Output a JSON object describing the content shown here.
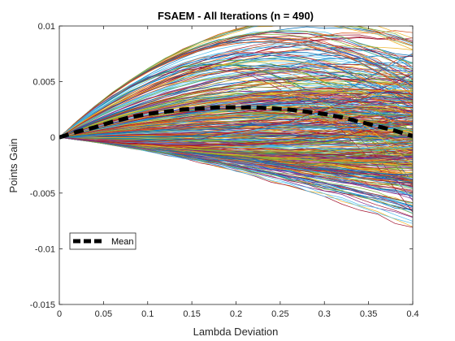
{
  "chart_data": {
    "type": "line",
    "title": "FSAEM - All Iterations (n = 490)",
    "xlabel": "Lambda Deviation",
    "ylabel": "Points Gain",
    "xlim": [
      0,
      0.4
    ],
    "ylim": [
      -0.015,
      0.01
    ],
    "xticks": [
      0,
      0.05,
      0.1,
      0.15,
      0.2,
      0.25,
      0.3,
      0.35,
      0.4
    ],
    "xtick_labels": [
      "0",
      "0.05",
      "0.1",
      "0.15",
      "0.2",
      "0.25",
      "0.3",
      "0.35",
      "0.4"
    ],
    "yticks": [
      0.01,
      0.005,
      0,
      -0.005,
      -0.01,
      -0.015
    ],
    "ytick_labels": [
      "0.01",
      "0.005",
      "0",
      "-0.005",
      "-0.01",
      "-0.015"
    ],
    "grid": false,
    "legend": {
      "position": "lower-left",
      "entries": [
        "Mean"
      ]
    },
    "iteration_count": 490,
    "iteration_colors": [
      "#0072BD",
      "#D95319",
      "#EDB120",
      "#7E2F8E",
      "#77AC30",
      "#4DBEEE",
      "#A2142F"
    ],
    "x": [
      0,
      0.02,
      0.04,
      0.06,
      0.08,
      0.1,
      0.12,
      0.14,
      0.16,
      0.18,
      0.2,
      0.22,
      0.24,
      0.26,
      0.28,
      0.3,
      0.32,
      0.34,
      0.36,
      0.38,
      0.4
    ],
    "series": [
      {
        "name": "Mean",
        "color": "#000000",
        "style": "dashed",
        "values": [
          0,
          0.0005,
          0.0009,
          0.0014,
          0.0018,
          0.0021,
          0.0023,
          0.0025,
          0.0026,
          0.0027,
          0.0027,
          0.0027,
          0.0026,
          0.0025,
          0.0023,
          0.0021,
          0.0018,
          0.0014,
          0.001,
          0.0006,
          0.0001
        ]
      }
    ]
  }
}
